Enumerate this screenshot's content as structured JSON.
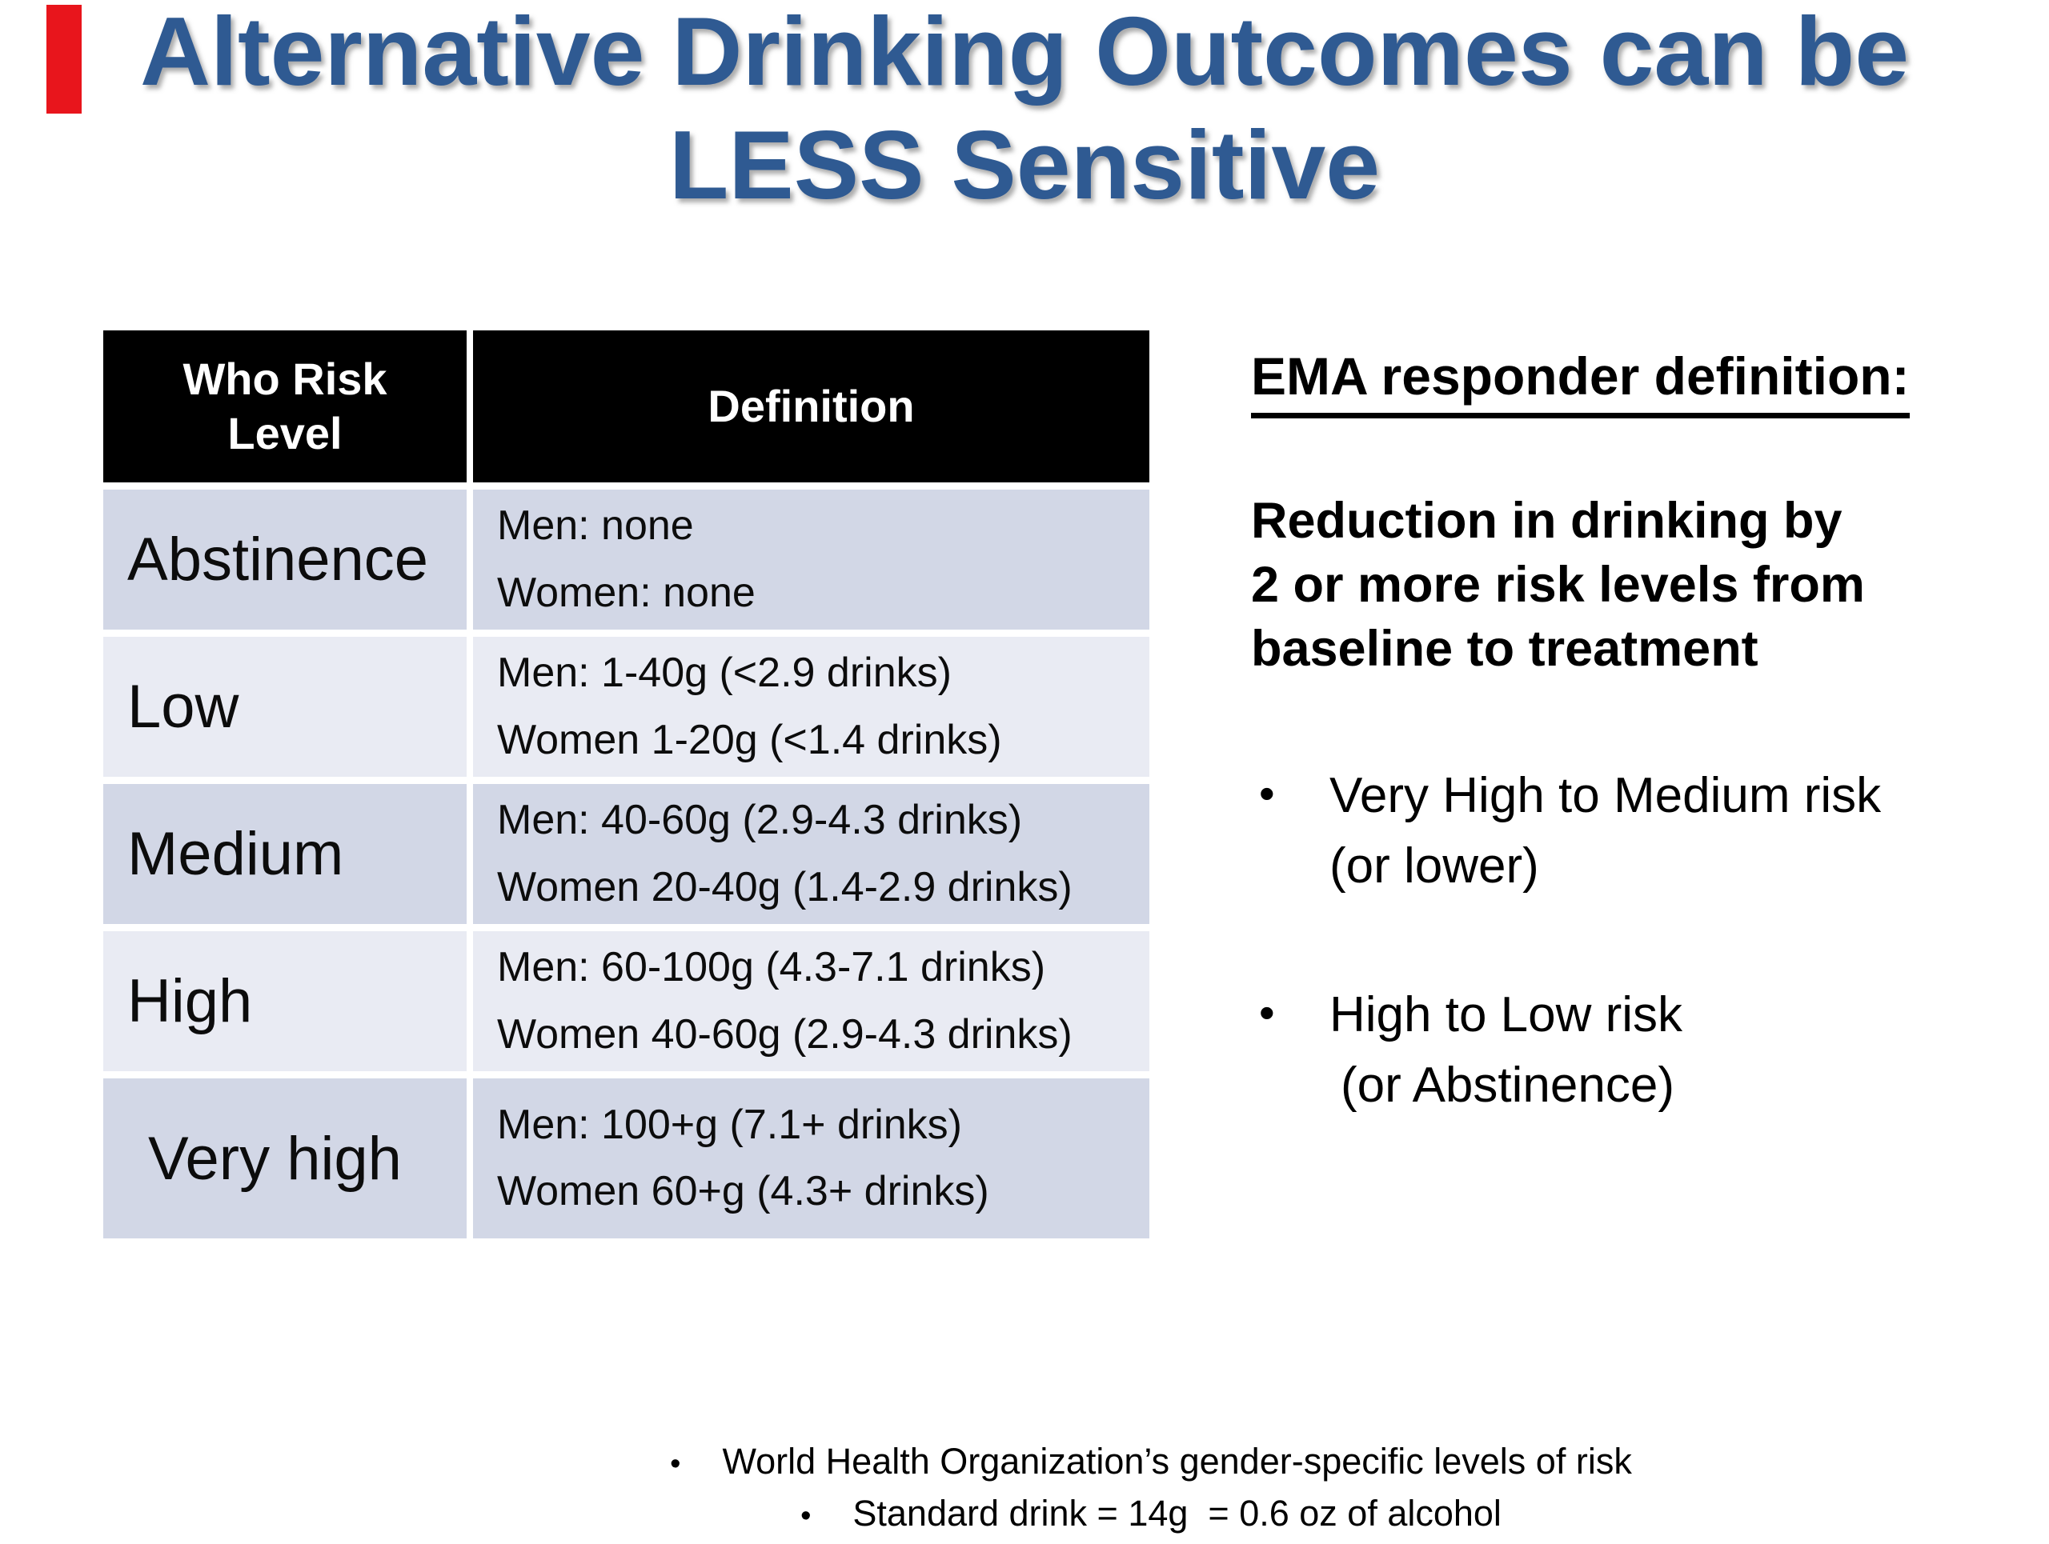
{
  "decoration": {
    "marker_color": "#e8151c"
  },
  "title": {
    "line1": "Alternative Drinking Outcomes can be",
    "line2": "LESS Sensitive",
    "color": "#2f5a92"
  },
  "table": {
    "headers": [
      "Who Risk Level",
      "Definition"
    ],
    "colors": {
      "header_bg": "#000000",
      "header_text": "#ffffff",
      "row_dark": "#d2d7e6",
      "row_light": "#e9ebf3"
    },
    "rows": [
      {
        "level": "Abstinence",
        "def_line1": "Men: none",
        "def_line2": "Women: none"
      },
      {
        "level": "Low",
        "def_line1": "Men: 1-40g (<2.9 drinks)",
        "def_line2": "Women 1-20g (<1.4 drinks)"
      },
      {
        "level": "Medium",
        "def_line1": "Men: 40-60g (2.9-4.3 drinks)",
        "def_line2": "Women 20-40g (1.4-2.9 drinks)"
      },
      {
        "level": "High",
        "def_line1": "Men: 60-100g (4.3-7.1 drinks)",
        "def_line2": "Women 40-60g (2.9-4.3 drinks)"
      },
      {
        "level": "Very high",
        "def_line1": "Men: 100+g (7.1+ drinks)",
        "def_line2": "Women 60+g (4.3+ drinks)"
      }
    ]
  },
  "panel": {
    "heading": "EMA responder definition:",
    "paragraph_lines": [
      "Reduction in drinking by",
      "2 or more risk levels from",
      "baseline to treatment"
    ],
    "bullet_char": "•",
    "bullets": [
      {
        "line1": "Very High to Medium risk",
        "line2": "(or lower)"
      },
      {
        "line1": "High to Low risk",
        "line2": "(or Abstinence)"
      }
    ]
  },
  "footnotes": {
    "bullet_char": "•",
    "items": [
      "World Health Organization’s gender-specific levels of risk",
      "Standard drink = 14g  = 0.6 oz of alcohol"
    ]
  }
}
